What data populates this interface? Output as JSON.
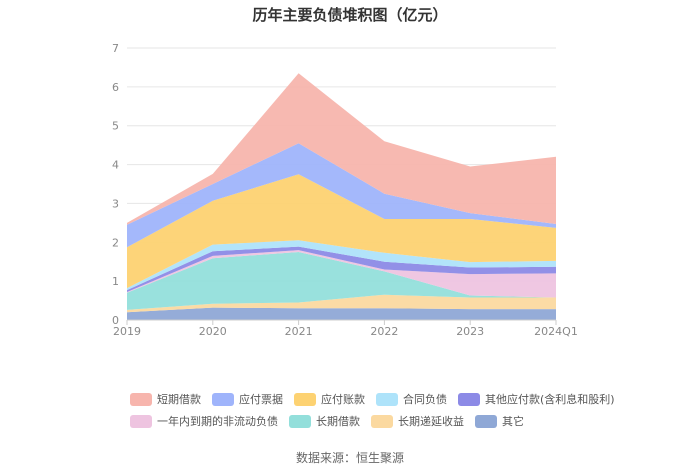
{
  "chart_data": {
    "type": "area",
    "stacked": true,
    "title": "历年主要负债堆积图（亿元）",
    "categories": [
      "2019",
      "2020",
      "2021",
      "2022",
      "2023",
      "2024Q1"
    ],
    "y_ticks": [
      "0",
      "1",
      "2",
      "3",
      "4",
      "5",
      "6",
      "7"
    ],
    "ylim": [
      0,
      7
    ],
    "grid": true,
    "legend_position": "bottom",
    "series": [
      {
        "name": "其它",
        "color": "#8fa8d6",
        "values": [
          0.2,
          0.32,
          0.3,
          0.3,
          0.28,
          0.28
        ]
      },
      {
        "name": "长期递延收益",
        "color": "#fbd9a0",
        "values": [
          0.06,
          0.1,
          0.15,
          0.35,
          0.3,
          0.3
        ]
      },
      {
        "name": "长期借款",
        "color": "#93dfdb",
        "values": [
          0.44,
          1.17,
          1.3,
          0.6,
          0.05,
          0.0
        ]
      },
      {
        "name": "一年内到期的非流动负债",
        "color": "#eec4e0",
        "values": [
          0.02,
          0.06,
          0.05,
          0.05,
          0.55,
          0.62
        ]
      },
      {
        "name": "其他应付款(含利息和股利)",
        "color": "#8c8ae6",
        "values": [
          0.05,
          0.12,
          0.09,
          0.2,
          0.17,
          0.17
        ]
      },
      {
        "name": "合同负债",
        "color": "#aee3fa",
        "values": [
          0.05,
          0.17,
          0.16,
          0.23,
          0.14,
          0.15
        ]
      },
      {
        "name": "应付账款",
        "color": "#fdd272",
        "values": [
          1.05,
          1.13,
          1.7,
          0.87,
          1.11,
          0.85
        ]
      },
      {
        "name": "应付票据",
        "color": "#9fb4fb",
        "values": [
          0.58,
          0.43,
          0.8,
          0.65,
          0.15,
          0.1
        ]
      },
      {
        "name": "短期借款",
        "color": "#f7b5ad",
        "values": [
          0.05,
          0.26,
          1.8,
          1.35,
          1.2,
          1.73
        ]
      }
    ],
    "legend_order": [
      "短期借款",
      "应付票据",
      "应付账款",
      "合同负债",
      "其他应付款(含利息和股利)",
      "一年内到期的非流动负债",
      "长期借款",
      "长期递延收益",
      "其它"
    ]
  },
  "source": "数据来源：恒生聚源"
}
